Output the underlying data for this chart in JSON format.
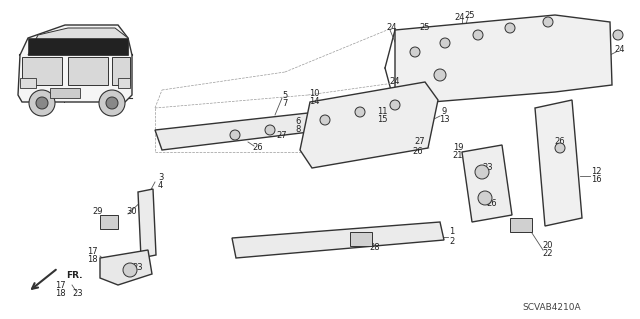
{
  "diagram_code": "SCVAB4210A",
  "bg_color": "#ffffff",
  "line_color": "#333333",
  "text_color": "#222222",
  "figsize": [
    6.4,
    3.19
  ],
  "dpi": 100
}
